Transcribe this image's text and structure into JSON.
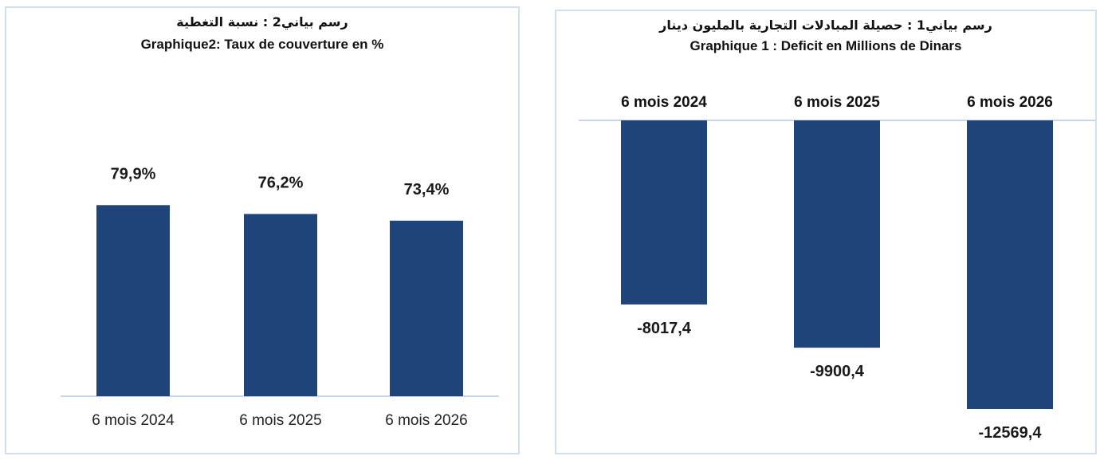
{
  "chart_data": [
    {
      "type": "bar",
      "title_ar": "رسم بياني2 : نسبة التغطية",
      "title": "Graphique2: Taux de couverture en %",
      "categories": [
        "6 mois 2024",
        "6 mois 2025",
        "6 mois 2026"
      ],
      "values": [
        79.9,
        76.2,
        73.4
      ],
      "value_labels": [
        "79,9%",
        "76,2%",
        "73,4%"
      ],
      "unit": "%",
      "bar_color": "#1f4479",
      "grid": false,
      "legend": "none"
    },
    {
      "type": "bar",
      "title_ar": "رسم بياني1 : حصيلة المبادلات التجارية بالمليون دينار",
      "title": "Graphique 1 : Deficit en Millions de Dinars",
      "categories": [
        "6 mois 2024",
        "6 mois 2025",
        "6 mois 2026"
      ],
      "values": [
        -8017.4,
        -9900.4,
        -12569.4
      ],
      "value_labels": [
        "-8017,4",
        "-9900,4",
        "-12569,4"
      ],
      "bar_color": "#1f4479",
      "grid": false,
      "legend": "none"
    }
  ]
}
